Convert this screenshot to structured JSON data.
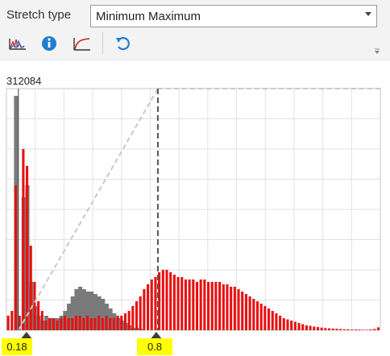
{
  "stretch": {
    "label": "Stretch type",
    "value": "Minimum Maximum"
  },
  "toolbar": {
    "buttons": [
      {
        "icon": "histogram-icon"
      },
      {
        "icon": "info-icon",
        "color": "#1e7ed2"
      },
      {
        "icon": "curve-icon"
      },
      {
        "icon": "reset-icon",
        "color": "#1e7ed2"
      }
    ]
  },
  "histogram": {
    "max_count_label": "312084",
    "min_value_label": "0.18",
    "max_value_label": "0.8",
    "colors": {
      "red": "#e81010",
      "gray": "#7a7a7a",
      "highlight": "#ffff00"
    }
  },
  "chart_data": {
    "type": "bar",
    "title": "",
    "xlabel": "",
    "ylabel": "",
    "y_max_label": "312084",
    "ylim": [
      0,
      312084
    ],
    "stretch_min": 0.18,
    "stretch_max": 0.8,
    "series": [
      {
        "name": "",
        "color": "#e81010",
        "values": [
          0.06,
          0.08,
          0.6,
          0.06,
          0.75,
          0.68,
          0.35,
          0.2,
          0.12,
          0.08,
          0.04,
          0.05,
          0.05,
          0.04,
          0.05,
          0.06,
          0.05,
          0.05,
          0.06,
          0.06,
          0.05,
          0.06,
          0.05,
          0.05,
          0.06,
          0.05,
          0.06,
          0.05,
          0.05,
          0.06,
          0.06,
          0.07,
          0.08,
          0.1,
          0.12,
          0.14,
          0.17,
          0.19,
          0.21,
          0.22,
          0.24,
          0.25,
          0.25,
          0.24,
          0.23,
          0.22,
          0.22,
          0.21,
          0.21,
          0.21,
          0.2,
          0.21,
          0.21,
          0.2,
          0.2,
          0.2,
          0.2,
          0.19,
          0.19,
          0.18,
          0.18,
          0.17,
          0.16,
          0.15,
          0.14,
          0.13,
          0.12,
          0.11,
          0.1,
          0.09,
          0.08,
          0.07,
          0.06,
          0.05,
          0.045,
          0.04,
          0.035,
          0.03,
          0.025,
          0.02,
          0.018,
          0.015,
          0.013,
          0.011,
          0.009,
          0.008,
          0.007,
          0.006,
          0.005,
          0.004,
          0.004,
          0.003,
          0.003,
          0.003,
          0.002,
          0.002,
          0.003,
          0.005,
          0.012
        ]
      },
      {
        "name": "",
        "color": "#7a7a7a",
        "values": [
          0.0,
          0.0,
          0.97,
          0.0,
          0.55,
          0.6,
          0.2,
          0.1,
          0.06,
          0.04,
          0.06,
          0.05,
          0.05,
          0.05,
          0.06,
          0.08,
          0.11,
          0.14,
          0.17,
          0.18,
          0.17,
          0.16,
          0.16,
          0.15,
          0.14,
          0.13,
          0.11,
          0.09,
          0.07,
          0.05,
          0.04,
          0.03,
          0.02,
          0.01,
          0.01,
          0.005,
          0,
          0,
          0,
          0,
          0,
          0,
          0,
          0,
          0,
          0,
          0,
          0,
          0,
          0,
          0,
          0,
          0,
          0,
          0,
          0,
          0,
          0,
          0,
          0,
          0,
          0,
          0,
          0,
          0,
          0,
          0,
          0,
          0,
          0,
          0,
          0,
          0,
          0,
          0,
          0,
          0,
          0,
          0,
          0,
          0,
          0,
          0,
          0,
          0,
          0,
          0,
          0,
          0,
          0,
          0,
          0,
          0,
          0,
          0,
          0,
          0,
          0,
          0
        ]
      }
    ],
    "grid": true
  }
}
